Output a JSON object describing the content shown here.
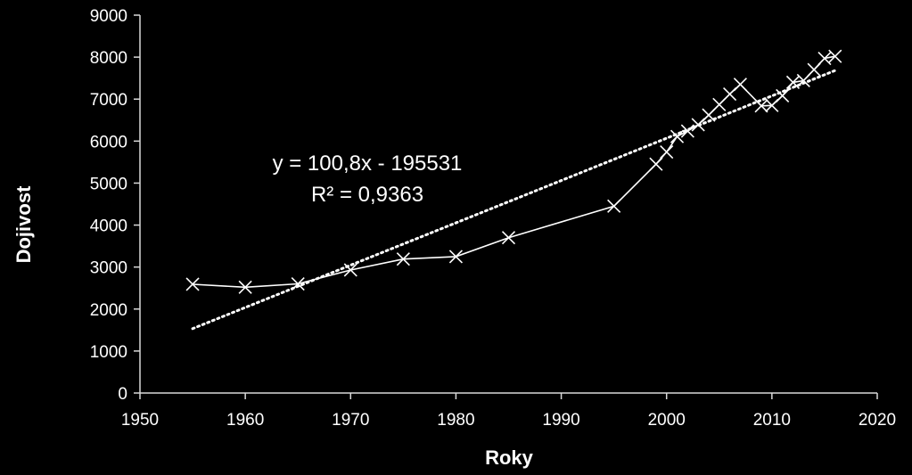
{
  "chart_data": {
    "type": "scatter",
    "title": "",
    "xlabel": "Roky",
    "ylabel": "Dojivost",
    "xlim": [
      1950,
      2020
    ],
    "ylim": [
      0,
      9000
    ],
    "x_ticks": [
      1950,
      1960,
      1970,
      1980,
      1990,
      2000,
      2010,
      2020
    ],
    "x_tick_labels": [
      "1950",
      "1960",
      "1970",
      "1980",
      "1990",
      "2000",
      "2010",
      "2020"
    ],
    "y_ticks": [
      0,
      1000,
      2000,
      3000,
      4000,
      5000,
      6000,
      7000,
      8000,
      9000
    ],
    "y_tick_labels": [
      "0",
      "1000",
      "2000",
      "3000",
      "4000",
      "5000",
      "6000",
      "7000",
      "8000",
      "9000"
    ],
    "grid": false,
    "legend": "none",
    "series": [
      {
        "marker": "x",
        "line": "solid",
        "color": "#ffffff",
        "x": [
          1955,
          1960,
          1965,
          1970,
          1975,
          1980,
          1985,
          1995,
          1999,
          2000,
          2001,
          2002,
          2003,
          2004,
          2005,
          2006,
          2007,
          2009,
          2010,
          2011,
          2012,
          2013,
          2014,
          2015,
          2016
        ],
        "y": [
          2590,
          2520,
          2600,
          2930,
          3190,
          3250,
          3700,
          4450,
          5450,
          5740,
          6110,
          6240,
          6390,
          6620,
          6870,
          7120,
          7350,
          6840,
          6850,
          7080,
          7400,
          7440,
          7700,
          7970,
          8020
        ]
      }
    ],
    "trendline": {
      "type": "linear",
      "style": "dotted",
      "color": "#ffffff",
      "slope": 100.8,
      "intercept": -195531,
      "x_range": [
        1955,
        2016
      ]
    },
    "annotations": {
      "equation": "y = 100,8x - 195531",
      "r_squared": "R² = 0,9363"
    }
  }
}
